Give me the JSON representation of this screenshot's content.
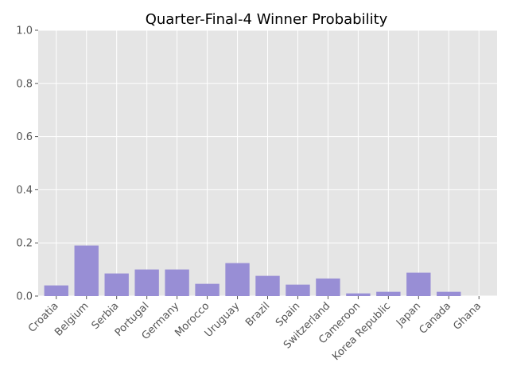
{
  "chart_data": {
    "type": "bar",
    "title": "Quarter-Final-4 Winner Probability",
    "xlabel": "",
    "ylabel": "",
    "categories": [
      "Croatia",
      "Belgium",
      "Serbia",
      "Portugal",
      "Germany",
      "Morocco",
      "Uruguay",
      "Brazil",
      "Spain",
      "Switzerland",
      "Cameroon",
      "Korea Republic",
      "Japan",
      "Canada",
      "Ghana"
    ],
    "values": [
      0.04,
      0.19,
      0.085,
      0.1,
      0.1,
      0.046,
      0.124,
      0.076,
      0.043,
      0.066,
      0.01,
      0.016,
      0.088,
      0.016,
      0.0
    ],
    "ylim": [
      0,
      1.0
    ],
    "yticks": [
      "0.0",
      "0.2",
      "0.4",
      "0.6",
      "0.8",
      "1.0"
    ],
    "grid": true,
    "style": "ggplot",
    "colors": {
      "bar": "#988ED5",
      "background": "#E5E5E5",
      "grid": "#FFFFFF"
    }
  }
}
